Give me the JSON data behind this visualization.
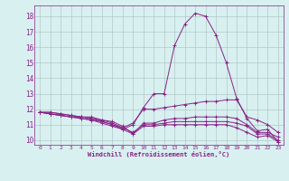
{
  "xlabel": "Windchill (Refroidissement éolien,°C)",
  "bg_color": "#d8f0f0",
  "grid_color": "#b0c8c8",
  "line_color": "#882288",
  "xlim": [
    -0.5,
    23.5
  ],
  "ylim": [
    9.7,
    18.7
  ],
  "xticks": [
    0,
    1,
    2,
    3,
    4,
    5,
    6,
    7,
    8,
    9,
    10,
    11,
    12,
    13,
    14,
    15,
    16,
    17,
    18,
    19,
    20,
    21,
    22,
    23
  ],
  "yticks": [
    10,
    11,
    12,
    13,
    14,
    15,
    16,
    17,
    18
  ],
  "lines": [
    [
      11.8,
      11.8,
      11.7,
      11.6,
      11.5,
      11.4,
      11.2,
      11.0,
      10.7,
      11.0,
      12.1,
      13.0,
      13.0,
      16.1,
      17.5,
      18.2,
      18.0,
      16.8,
      15.0,
      12.7,
      11.4,
      10.6,
      10.7,
      9.9
    ],
    [
      11.8,
      11.8,
      11.7,
      11.6,
      11.5,
      11.5,
      11.3,
      11.1,
      10.8,
      11.1,
      12.0,
      12.0,
      12.1,
      12.2,
      12.3,
      12.4,
      12.5,
      12.5,
      12.6,
      12.6,
      11.5,
      11.3,
      11.0,
      10.5
    ],
    [
      11.8,
      11.7,
      11.6,
      11.5,
      11.5,
      11.4,
      11.3,
      11.2,
      10.9,
      10.4,
      11.1,
      11.1,
      11.3,
      11.4,
      11.4,
      11.5,
      11.5,
      11.5,
      11.5,
      11.4,
      11.0,
      10.5,
      10.5,
      10.2
    ],
    [
      11.8,
      11.7,
      11.6,
      11.5,
      11.4,
      11.3,
      11.2,
      11.0,
      10.8,
      10.5,
      11.0,
      11.0,
      11.1,
      11.2,
      11.2,
      11.2,
      11.2,
      11.2,
      11.2,
      11.1,
      10.9,
      10.4,
      10.4,
      10.0
    ],
    [
      11.8,
      11.7,
      11.6,
      11.5,
      11.4,
      11.3,
      11.1,
      10.9,
      10.7,
      10.4,
      10.9,
      10.9,
      11.0,
      11.0,
      11.0,
      11.0,
      11.0,
      11.0,
      11.0,
      10.8,
      10.5,
      10.2,
      10.3,
      9.9
    ]
  ]
}
